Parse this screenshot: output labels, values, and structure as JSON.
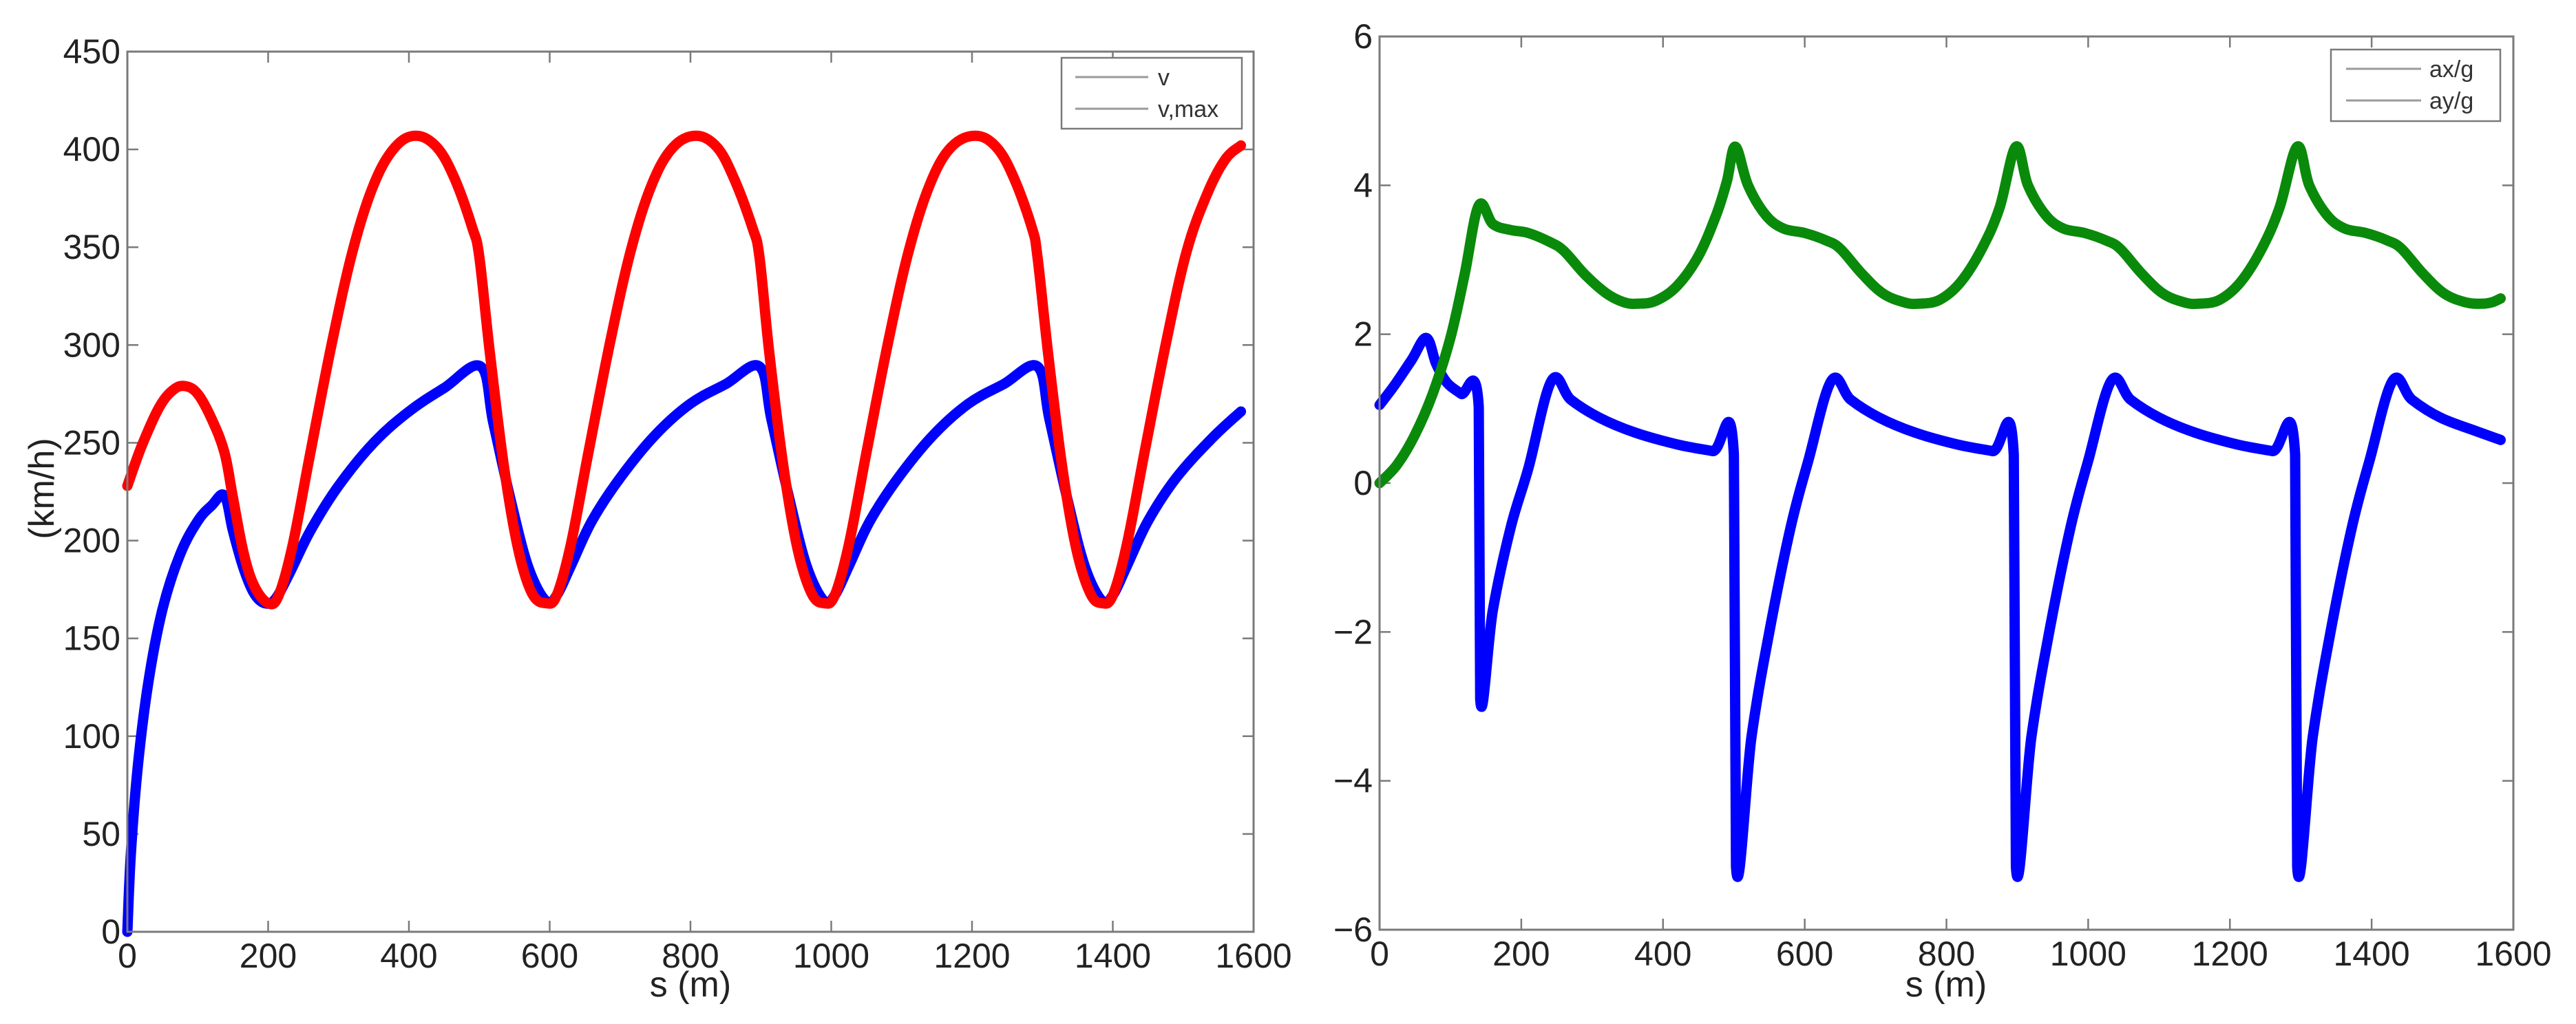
{
  "chart_data": [
    {
      "type": "line",
      "title": "",
      "xlabel": "s (m)",
      "ylabel": "(km/h)",
      "xlim": [
        0,
        1600
      ],
      "ylim": [
        0,
        450
      ],
      "xticks": [
        0,
        200,
        400,
        600,
        800,
        1000,
        1200,
        1400,
        1600
      ],
      "yticks": [
        0,
        50,
        100,
        150,
        200,
        250,
        300,
        350,
        400,
        450
      ],
      "grid": false,
      "legend_position": "upper right",
      "legend": [
        "v",
        "v,max"
      ],
      "series": [
        {
          "name": "v",
          "color": "#0000ff",
          "points": [
            [
              0,
              0
            ],
            [
              5,
              40
            ],
            [
              15,
              85
            ],
            [
              30,
              128
            ],
            [
              50,
              165
            ],
            [
              75,
              193
            ],
            [
              100,
              210
            ],
            [
              120,
              218
            ],
            [
              138,
              223
            ],
            [
              150,
              205
            ],
            [
              165,
              186
            ],
            [
              180,
              173
            ],
            [
              195,
              168
            ],
            [
              210,
              170
            ],
            [
              230,
              183
            ],
            [
              260,
              205
            ],
            [
              300,
              228
            ],
            [
              350,
              250
            ],
            [
              400,
              266
            ],
            [
              450,
              278
            ],
            [
              502,
              289
            ],
            [
              520,
              260
            ],
            [
              545,
              220
            ],
            [
              570,
              186
            ],
            [
              595,
              169
            ],
            [
              610,
              172
            ],
            [
              630,
              187
            ],
            [
              660,
              210
            ],
            [
              700,
              232
            ],
            [
              750,
              254
            ],
            [
              800,
              270
            ],
            [
              850,
              280
            ],
            [
              898,
              289
            ],
            [
              915,
              262
            ],
            [
              940,
              222
            ],
            [
              965,
              187
            ],
            [
              990,
              169
            ],
            [
              1005,
              172
            ],
            [
              1025,
              187
            ],
            [
              1055,
              210
            ],
            [
              1095,
              232
            ],
            [
              1145,
              254
            ],
            [
              1195,
              270
            ],
            [
              1245,
              280
            ],
            [
              1293,
              289
            ],
            [
              1310,
              262
            ],
            [
              1335,
              222
            ],
            [
              1360,
              187
            ],
            [
              1385,
              169
            ],
            [
              1400,
              172
            ],
            [
              1420,
              187
            ],
            [
              1450,
              210
            ],
            [
              1490,
              232
            ],
            [
              1540,
              252
            ],
            [
              1582,
              266
            ]
          ]
        },
        {
          "name": "v,max",
          "color": "#ff0000",
          "points": [
            [
              0,
              228
            ],
            [
              20,
              248
            ],
            [
              45,
              268
            ],
            [
              65,
              277
            ],
            [
              82,
              279
            ],
            [
              100,
              275
            ],
            [
              120,
              262
            ],
            [
              138,
              245
            ],
            [
              150,
              222
            ],
            [
              165,
              194
            ],
            [
              180,
              177
            ],
            [
              200,
              168
            ],
            [
              215,
              172
            ],
            [
              235,
              198
            ],
            [
              260,
              245
            ],
            [
              290,
              300
            ],
            [
              320,
              348
            ],
            [
              350,
              382
            ],
            [
              380,
              401
            ],
            [
              410,
              407
            ],
            [
              440,
              401
            ],
            [
              465,
              385
            ],
            [
              490,
              360
            ],
            [
              500,
              345
            ],
            [
              515,
              296
            ],
            [
              535,
              238
            ],
            [
              555,
              196
            ],
            [
              575,
              173
            ],
            [
              595,
              168
            ],
            [
              610,
              172
            ],
            [
              630,
              198
            ],
            [
              655,
              245
            ],
            [
              685,
              300
            ],
            [
              715,
              348
            ],
            [
              745,
              382
            ],
            [
              775,
              401
            ],
            [
              808,
              407
            ],
            [
              838,
              401
            ],
            [
              862,
              385
            ],
            [
              888,
              360
            ],
            [
              898,
              345
            ],
            [
              912,
              296
            ],
            [
              932,
              238
            ],
            [
              952,
              196
            ],
            [
              972,
              173
            ],
            [
              990,
              168
            ],
            [
              1005,
              172
            ],
            [
              1025,
              198
            ],
            [
              1050,
              245
            ],
            [
              1080,
              300
            ],
            [
              1110,
              348
            ],
            [
              1140,
              382
            ],
            [
              1170,
              401
            ],
            [
              1205,
              407
            ],
            [
              1235,
              401
            ],
            [
              1260,
              385
            ],
            [
              1285,
              360
            ],
            [
              1293,
              345
            ],
            [
              1308,
              296
            ],
            [
              1328,
              238
            ],
            [
              1348,
              196
            ],
            [
              1368,
              173
            ],
            [
              1385,
              168
            ],
            [
              1400,
              172
            ],
            [
              1420,
              198
            ],
            [
              1445,
              245
            ],
            [
              1475,
              300
            ],
            [
              1505,
              348
            ],
            [
              1535,
              378
            ],
            [
              1560,
              395
            ],
            [
              1582,
              402
            ]
          ]
        }
      ]
    },
    {
      "type": "line",
      "title": "",
      "xlabel": "s (m)",
      "ylabel": "",
      "xlim": [
        0,
        1600
      ],
      "ylim": [
        -6,
        6
      ],
      "xticks": [
        0,
        200,
        400,
        600,
        800,
        1000,
        1200,
        1400,
        1600
      ],
      "yticks": [
        -6,
        -4,
        -2,
        0,
        2,
        4,
        6
      ],
      "grid": false,
      "legend_position": "upper right",
      "legend": [
        "ax/g",
        "ay/g"
      ],
      "series": [
        {
          "name": "ax/g",
          "color": "#0000ff",
          "points": [
            [
              0,
              1.05
            ],
            [
              20,
              1.3
            ],
            [
              45,
              1.65
            ],
            [
              66,
              1.95
            ],
            [
              80,
              1.6
            ],
            [
              95,
              1.35
            ],
            [
              115,
              1.2
            ],
            [
              140,
              1.02
            ],
            [
              142,
              -2.9
            ],
            [
              160,
              -1.7
            ],
            [
              185,
              -0.6
            ],
            [
              210,
              0.2
            ],
            [
              243,
              1.38
            ],
            [
              270,
              1.12
            ],
            [
              310,
              0.88
            ],
            [
              360,
              0.68
            ],
            [
              420,
              0.52
            ],
            [
              470,
              0.43
            ],
            [
              500,
              0.38
            ],
            [
              503,
              -5.15
            ],
            [
              525,
              -3.4
            ],
            [
              550,
              -2.0
            ],
            [
              580,
              -0.6
            ],
            [
              605,
              0.3
            ],
            [
              638,
              1.38
            ],
            [
              665,
              1.12
            ],
            [
              705,
              0.88
            ],
            [
              755,
              0.68
            ],
            [
              815,
              0.52
            ],
            [
              865,
              0.43
            ],
            [
              895,
              0.38
            ],
            [
              898,
              -5.15
            ],
            [
              920,
              -3.4
            ],
            [
              945,
              -2.0
            ],
            [
              975,
              -0.6
            ],
            [
              1000,
              0.3
            ],
            [
              1033,
              1.38
            ],
            [
              1060,
              1.12
            ],
            [
              1100,
              0.88
            ],
            [
              1150,
              0.68
            ],
            [
              1210,
              0.52
            ],
            [
              1260,
              0.43
            ],
            [
              1292,
              0.38
            ],
            [
              1295,
              -5.15
            ],
            [
              1317,
              -3.4
            ],
            [
              1342,
              -2.0
            ],
            [
              1372,
              -0.6
            ],
            [
              1397,
              0.3
            ],
            [
              1430,
              1.38
            ],
            [
              1457,
              1.12
            ],
            [
              1497,
              0.88
            ],
            [
              1547,
              0.7
            ],
            [
              1582,
              0.58
            ]
          ]
        },
        {
          "name": "ay/g",
          "color": "#0a8a0a",
          "points": [
            [
              0,
              0.0
            ],
            [
              25,
              0.25
            ],
            [
              50,
              0.65
            ],
            [
              75,
              1.2
            ],
            [
              100,
              1.95
            ],
            [
              120,
              2.8
            ],
            [
              140,
              3.73
            ],
            [
              160,
              3.48
            ],
            [
              185,
              3.4
            ],
            [
              210,
              3.36
            ],
            [
              240,
              3.24
            ],
            [
              260,
              3.12
            ],
            [
              290,
              2.8
            ],
            [
              320,
              2.55
            ],
            [
              345,
              2.43
            ],
            [
              365,
              2.41
            ],
            [
              390,
              2.45
            ],
            [
              420,
              2.65
            ],
            [
              450,
              3.05
            ],
            [
              475,
              3.6
            ],
            [
              490,
              4.05
            ],
            [
              502,
              4.52
            ],
            [
              520,
              4.0
            ],
            [
              545,
              3.6
            ],
            [
              570,
              3.42
            ],
            [
              600,
              3.36
            ],
            [
              630,
              3.26
            ],
            [
              650,
              3.15
            ],
            [
              680,
              2.82
            ],
            [
              710,
              2.55
            ],
            [
              740,
              2.43
            ],
            [
              760,
              2.41
            ],
            [
              790,
              2.46
            ],
            [
              820,
              2.7
            ],
            [
              850,
              3.15
            ],
            [
              875,
              3.7
            ],
            [
              898,
              4.52
            ],
            [
              915,
              4.0
            ],
            [
              940,
              3.6
            ],
            [
              965,
              3.42
            ],
            [
              995,
              3.36
            ],
            [
              1025,
              3.26
            ],
            [
              1045,
              3.15
            ],
            [
              1075,
              2.82
            ],
            [
              1105,
              2.55
            ],
            [
              1135,
              2.43
            ],
            [
              1155,
              2.41
            ],
            [
              1185,
              2.46
            ],
            [
              1215,
              2.7
            ],
            [
              1245,
              3.15
            ],
            [
              1270,
              3.7
            ],
            [
              1295,
              4.52
            ],
            [
              1312,
              4.0
            ],
            [
              1337,
              3.6
            ],
            [
              1362,
              3.42
            ],
            [
              1392,
              3.36
            ],
            [
              1422,
              3.26
            ],
            [
              1442,
              3.15
            ],
            [
              1472,
              2.82
            ],
            [
              1502,
              2.55
            ],
            [
              1532,
              2.43
            ],
            [
              1555,
              2.41
            ],
            [
              1570,
              2.43
            ],
            [
              1582,
              2.48
            ]
          ]
        }
      ]
    }
  ],
  "charts": {
    "left": {
      "ylabel": "(km/h)",
      "xlabel": "s (m)",
      "legend": [
        {
          "label": "v",
          "color": "#0000ff"
        },
        {
          "label": "v,max",
          "color": "#ff0000"
        }
      ]
    },
    "right": {
      "xlabel": "s (m)",
      "legend": [
        {
          "label": "ax/g",
          "color": "#0000ff"
        },
        {
          "label": "ay/g",
          "color": "#0a8a0a"
        }
      ]
    }
  }
}
